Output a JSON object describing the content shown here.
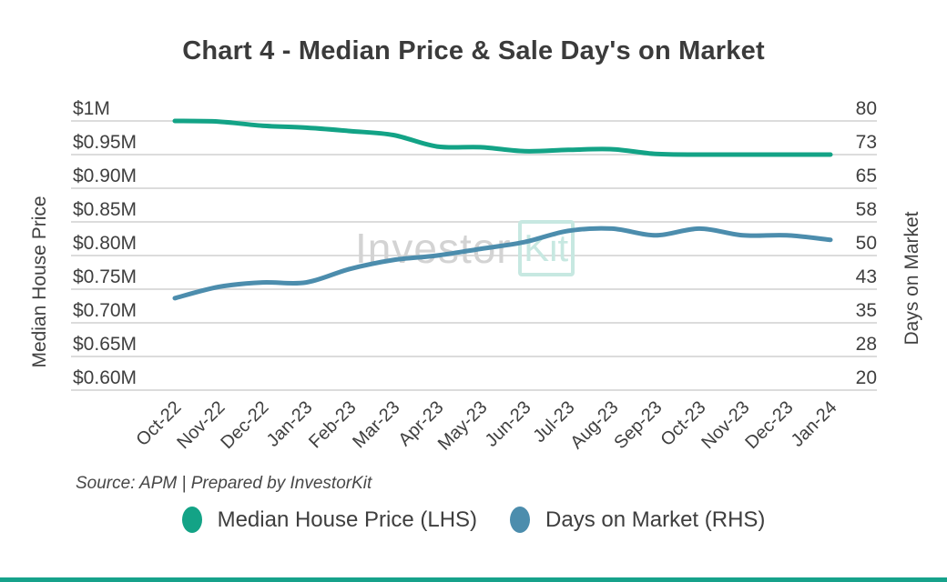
{
  "title": "Chart 4 - Median Price & Sale Day's on Market",
  "watermark": {
    "part1": "Investor",
    "part2": "Kit"
  },
  "source": "Source: APM | Prepared by InvestorKit",
  "colors": {
    "median_price_line": "#13a386",
    "days_on_market_line": "#4c8dad",
    "grid": "#dcdcdc",
    "tick_text": "#3f3f3f",
    "title_text": "#3b3b3b",
    "watermark_gray": "#d3d3d3",
    "watermark_teal": "#c7e8e1",
    "accent_bar": "#16a28b",
    "background": "#ffffff"
  },
  "chart_data": {
    "type": "line",
    "title": "Chart 4 - Median Price & Sale Day's on Market",
    "categories": [
      "Oct-22",
      "Nov-22",
      "Dec-22",
      "Jan-23",
      "Feb-23",
      "Mar-23",
      "Apr-23",
      "May-23",
      "Jun-23",
      "Jul-23",
      "Aug-23",
      "Sep-23",
      "Oct-23",
      "Nov-23",
      "Dec-23",
      "Jan-24"
    ],
    "series": [
      {
        "name": "Median House Price (LHS)",
        "axis": "left",
        "color": "#13a386",
        "unit": "$M",
        "values": [
          1.0,
          0.999,
          0.993,
          0.99,
          0.985,
          0.979,
          0.962,
          0.961,
          0.955,
          0.957,
          0.958,
          0.951,
          0.95,
          0.95,
          0.95,
          0.95
        ]
      },
      {
        "name": "Days on Market (RHS)",
        "axis": "right",
        "color": "#4c8dad",
        "unit": "days",
        "values": [
          40.5,
          43,
          44,
          44,
          47,
          49,
          50,
          51.5,
          53,
          55.5,
          56,
          54.5,
          56,
          54.5,
          54.5,
          53.5
        ]
      }
    ],
    "left_axis": {
      "label": "Median House Price",
      "tick_labels": [
        "$1M",
        "$0.95M",
        "$0.90M",
        "$0.85M",
        "$0.80M",
        "$0.75M",
        "$0.70M",
        "$0.65M",
        "$0.60M"
      ],
      "range": [
        0.6,
        1.0
      ]
    },
    "right_axis": {
      "label": "Days on Market",
      "tick_labels": [
        "80",
        "73",
        "65",
        "58",
        "50",
        "43",
        "35",
        "28",
        "20"
      ],
      "range": [
        20,
        80
      ]
    },
    "grid": true,
    "legend_position": "bottom"
  }
}
